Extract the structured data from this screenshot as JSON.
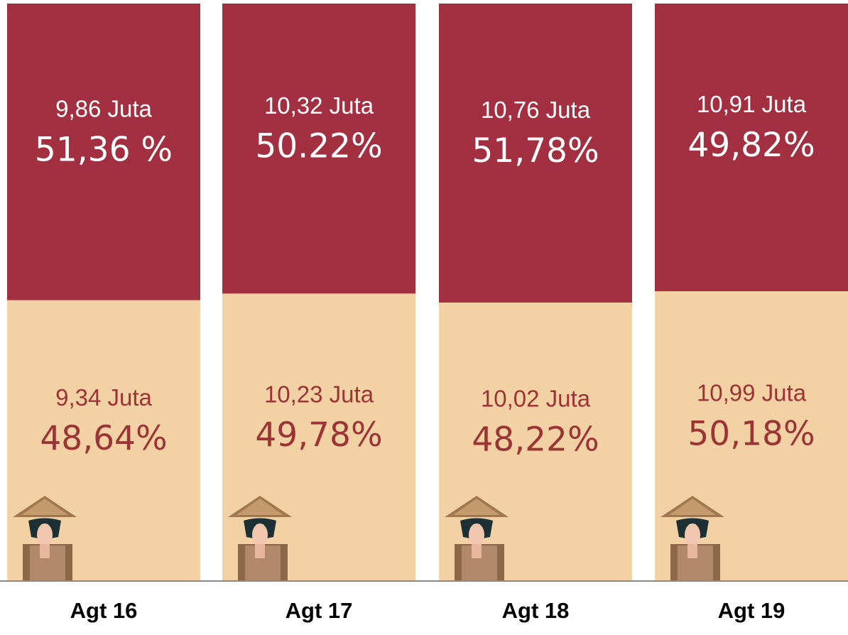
{
  "chart_data": {
    "type": "stacked-bar",
    "categories": [
      "Agt 16",
      "Agt 17",
      "Agt 18",
      "Agt 19"
    ],
    "ylim": [
      0,
      100
    ],
    "series": [
      {
        "color": "#f2d1a5",
        "text_color": "#9b3535",
        "values": [
          48.64,
          49.78,
          48.22,
          50.18
        ],
        "value_labels": [
          "48,64%",
          "49,78%",
          "48,22%",
          "50,18%"
        ],
        "amount_labels": [
          "9,34 Juta",
          "10,23 Juta",
          "10,02 Juta",
          "10,99 Juta"
        ]
      },
      {
        "color": "#a33040",
        "text_color": "#ffffff",
        "values": [
          51.36,
          50.22,
          51.78,
          49.82
        ],
        "value_labels": [
          "51,36 %",
          "50.22%",
          "51,78%",
          "49,82%"
        ],
        "amount_labels": [
          "9,86 Juta",
          "10,32 Juta",
          "10,76 Juta",
          "10,91 Juta"
        ]
      }
    ]
  }
}
